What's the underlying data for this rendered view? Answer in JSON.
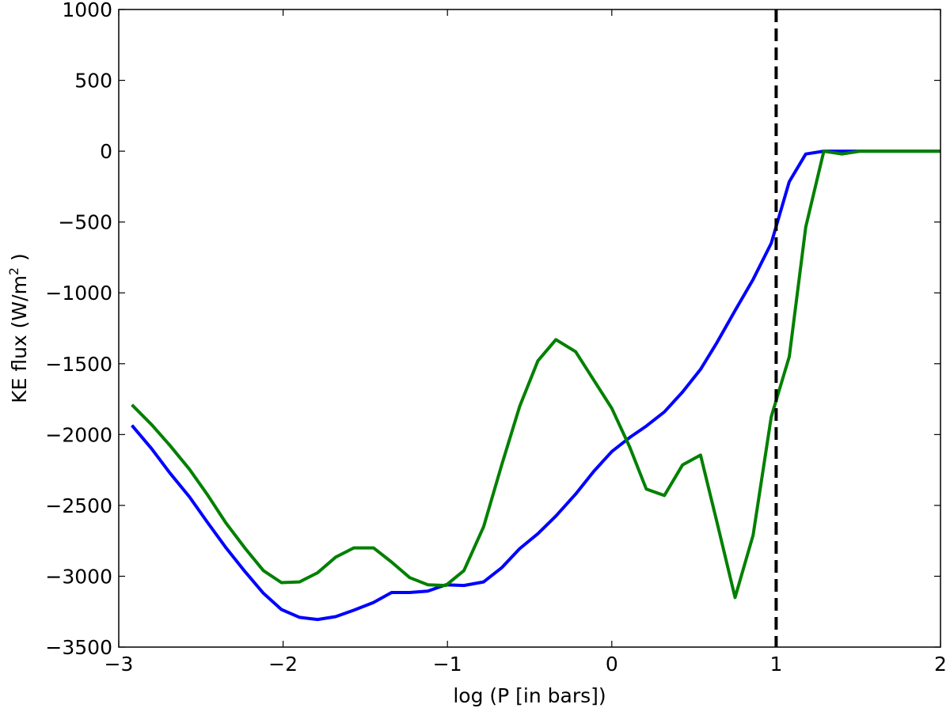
{
  "chart_data": {
    "type": "line",
    "title": "",
    "xlabel": "log (P [in bars])",
    "ylabel_main": "KE flux (W/m",
    "ylabel_sup": "2",
    "ylabel_end": " )",
    "xlim": [
      -3,
      2
    ],
    "ylim": [
      -3500,
      1000
    ],
    "xticks": [
      -3,
      -2,
      -1,
      0,
      1,
      2
    ],
    "xtick_labels": [
      "−3",
      "−2",
      "−1",
      "0",
      "1",
      "2"
    ],
    "yticks": [
      1000,
      500,
      0,
      -500,
      -1000,
      -1500,
      -2000,
      -2500,
      -3000,
      -3500
    ],
    "ytick_labels": [
      "1000",
      "500",
      "0",
      "−500",
      "−1000",
      "−1500",
      "−2000",
      "−2500",
      "−3000",
      "−3500"
    ],
    "grid": false,
    "series": [
      {
        "color": "#0000ff",
        "x": [
          -2.92,
          -2.8,
          -2.69,
          -2.57,
          -2.46,
          -2.35,
          -2.23,
          -2.12,
          -2.01,
          -1.9,
          -1.79,
          -1.68,
          -1.57,
          -1.45,
          -1.34,
          -1.23,
          -1.12,
          -1.01,
          -0.9,
          -0.78,
          -0.67,
          -0.56,
          -0.45,
          -0.34,
          -0.22,
          -0.11,
          0.0,
          0.11,
          0.21,
          0.32,
          0.43,
          0.54,
          0.64,
          0.75,
          0.86,
          0.97,
          1.08,
          1.18,
          1.29,
          1.4,
          1.51,
          1.62,
          1.73,
          1.84,
          1.95,
          2.0
        ],
        "values": [
          -1935,
          -2100,
          -2270,
          -2440,
          -2620,
          -2795,
          -2970,
          -3120,
          -3235,
          -3290,
          -3305,
          -3285,
          -3240,
          -3185,
          -3115,
          -3115,
          -3105,
          -3060,
          -3065,
          -3040,
          -2940,
          -2805,
          -2700,
          -2575,
          -2420,
          -2260,
          -2120,
          -2020,
          -1940,
          -1840,
          -1700,
          -1540,
          -1350,
          -1125,
          -905,
          -650,
          -215,
          -20,
          0,
          0,
          0,
          0,
          0,
          0,
          0,
          0
        ]
      },
      {
        "color": "#008000",
        "x": [
          -2.92,
          -2.8,
          -2.69,
          -2.57,
          -2.46,
          -2.35,
          -2.23,
          -2.12,
          -2.01,
          -1.9,
          -1.79,
          -1.68,
          -1.57,
          -1.45,
          -1.34,
          -1.23,
          -1.12,
          -1.01,
          -0.9,
          -0.78,
          -0.67,
          -0.56,
          -0.45,
          -0.34,
          -0.22,
          -0.11,
          0.0,
          0.11,
          0.21,
          0.32,
          0.43,
          0.54,
          0.64,
          0.75,
          0.86,
          0.97,
          1.08,
          1.18,
          1.29,
          1.4,
          1.51,
          1.62,
          1.73,
          1.84,
          1.95,
          2.0
        ],
        "values": [
          -1790,
          -1930,
          -2075,
          -2245,
          -2425,
          -2620,
          -2805,
          -2960,
          -3045,
          -3040,
          -2975,
          -2865,
          -2800,
          -2800,
          -2900,
          -3010,
          -3060,
          -3065,
          -2960,
          -2650,
          -2215,
          -1800,
          -1480,
          -1330,
          -1415,
          -1615,
          -1815,
          -2090,
          -2385,
          -2430,
          -2215,
          -2145,
          -2620,
          -3150,
          -2710,
          -1875,
          -1450,
          -535,
          0,
          -20,
          0,
          0,
          0,
          0,
          0,
          0
        ]
      }
    ],
    "reference_lines": [
      {
        "axis": "x",
        "value": 1.0,
        "style": "dashed",
        "color": "#000000"
      }
    ]
  }
}
